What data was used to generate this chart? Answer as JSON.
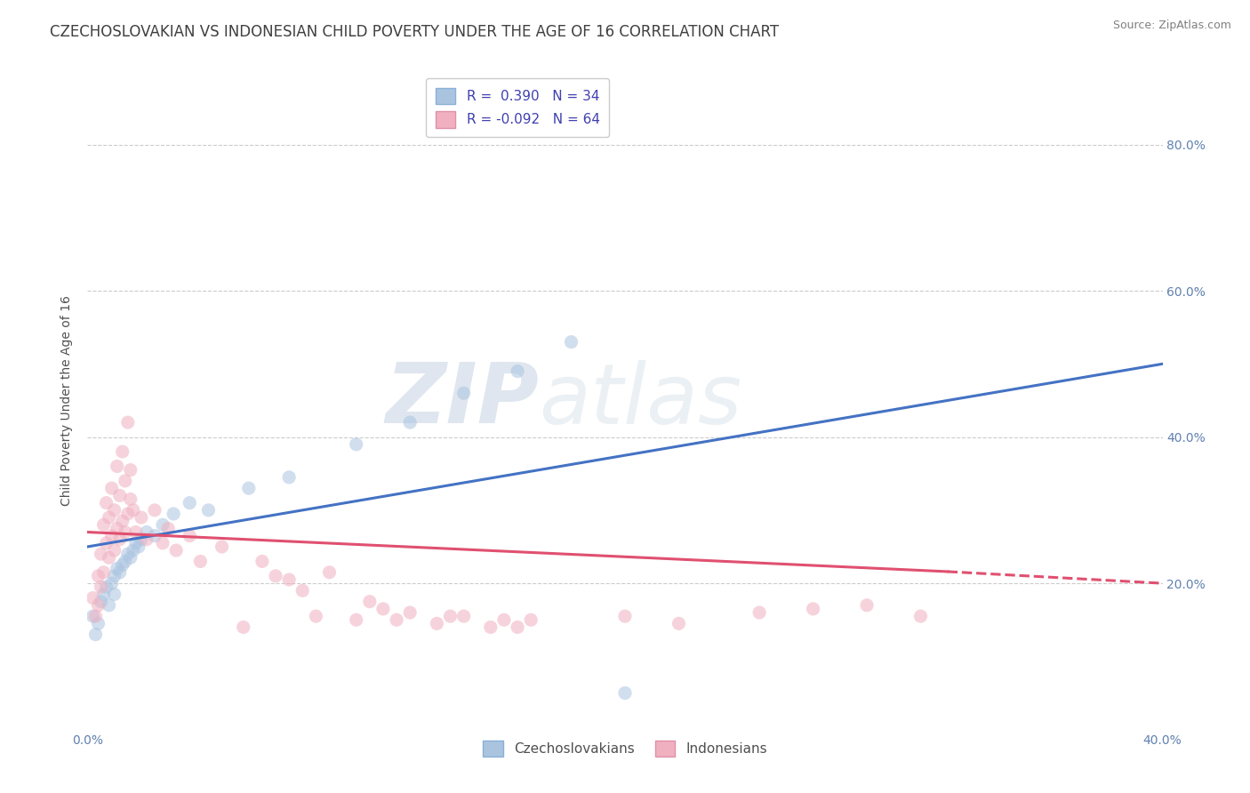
{
  "title": "CZECHOSLOVAKIAN VS INDONESIAN CHILD POVERTY UNDER THE AGE OF 16 CORRELATION CHART",
  "source": "Source: ZipAtlas.com",
  "ylabel": "Child Poverty Under the Age of 16",
  "xlim": [
    0.0,
    0.4
  ],
  "ylim": [
    0.0,
    0.9
  ],
  "xticks": [
    0.0,
    0.1,
    0.2,
    0.3,
    0.4
  ],
  "xticklabels": [
    "0.0%",
    "",
    "",
    "",
    "40.0%"
  ],
  "yticks_left": [
    0.0,
    0.2,
    0.4,
    0.6,
    0.8
  ],
  "yticklabels_left": [
    "",
    "",
    "",
    "",
    ""
  ],
  "yticks_right": [
    0.2,
    0.4,
    0.6,
    0.8
  ],
  "yticklabels_right": [
    "20.0%",
    "40.0%",
    "60.0%",
    "80.0%"
  ],
  "grid_color": "#cccccc",
  "background_color": "#ffffff",
  "watermark_zip": "ZIP",
  "watermark_atlas": "atlas",
  "blue_R": "0.390",
  "blue_N": "34",
  "pink_R": "-0.092",
  "pink_N": "64",
  "blue_scatter": [
    [
      0.002,
      0.155
    ],
    [
      0.003,
      0.13
    ],
    [
      0.004,
      0.145
    ],
    [
      0.005,
      0.175
    ],
    [
      0.006,
      0.185
    ],
    [
      0.007,
      0.195
    ],
    [
      0.008,
      0.17
    ],
    [
      0.009,
      0.2
    ],
    [
      0.01,
      0.185
    ],
    [
      0.01,
      0.21
    ],
    [
      0.011,
      0.22
    ],
    [
      0.012,
      0.215
    ],
    [
      0.013,
      0.225
    ],
    [
      0.014,
      0.23
    ],
    [
      0.015,
      0.24
    ],
    [
      0.016,
      0.235
    ],
    [
      0.017,
      0.245
    ],
    [
      0.018,
      0.255
    ],
    [
      0.019,
      0.25
    ],
    [
      0.02,
      0.26
    ],
    [
      0.022,
      0.27
    ],
    [
      0.025,
      0.265
    ],
    [
      0.028,
      0.28
    ],
    [
      0.032,
      0.295
    ],
    [
      0.038,
      0.31
    ],
    [
      0.045,
      0.3
    ],
    [
      0.06,
      0.33
    ],
    [
      0.075,
      0.345
    ],
    [
      0.1,
      0.39
    ],
    [
      0.12,
      0.42
    ],
    [
      0.14,
      0.46
    ],
    [
      0.16,
      0.49
    ],
    [
      0.18,
      0.53
    ],
    [
      0.2,
      0.05
    ]
  ],
  "pink_scatter": [
    [
      0.002,
      0.18
    ],
    [
      0.003,
      0.155
    ],
    [
      0.004,
      0.17
    ],
    [
      0.004,
      0.21
    ],
    [
      0.005,
      0.195
    ],
    [
      0.005,
      0.24
    ],
    [
      0.006,
      0.215
    ],
    [
      0.006,
      0.28
    ],
    [
      0.007,
      0.255
    ],
    [
      0.007,
      0.31
    ],
    [
      0.008,
      0.235
    ],
    [
      0.008,
      0.29
    ],
    [
      0.009,
      0.265
    ],
    [
      0.009,
      0.33
    ],
    [
      0.01,
      0.245
    ],
    [
      0.01,
      0.3
    ],
    [
      0.011,
      0.275
    ],
    [
      0.011,
      0.36
    ],
    [
      0.012,
      0.26
    ],
    [
      0.012,
      0.32
    ],
    [
      0.013,
      0.285
    ],
    [
      0.013,
      0.38
    ],
    [
      0.014,
      0.27
    ],
    [
      0.014,
      0.34
    ],
    [
      0.015,
      0.295
    ],
    [
      0.015,
      0.42
    ],
    [
      0.016,
      0.315
    ],
    [
      0.016,
      0.355
    ],
    [
      0.017,
      0.3
    ],
    [
      0.018,
      0.27
    ],
    [
      0.02,
      0.29
    ],
    [
      0.022,
      0.26
    ],
    [
      0.025,
      0.3
    ],
    [
      0.028,
      0.255
    ],
    [
      0.03,
      0.275
    ],
    [
      0.033,
      0.245
    ],
    [
      0.038,
      0.265
    ],
    [
      0.042,
      0.23
    ],
    [
      0.05,
      0.25
    ],
    [
      0.058,
      0.14
    ],
    [
      0.065,
      0.23
    ],
    [
      0.07,
      0.21
    ],
    [
      0.075,
      0.205
    ],
    [
      0.08,
      0.19
    ],
    [
      0.085,
      0.155
    ],
    [
      0.09,
      0.215
    ],
    [
      0.1,
      0.15
    ],
    [
      0.105,
      0.175
    ],
    [
      0.11,
      0.165
    ],
    [
      0.115,
      0.15
    ],
    [
      0.12,
      0.16
    ],
    [
      0.13,
      0.145
    ],
    [
      0.135,
      0.155
    ],
    [
      0.14,
      0.155
    ],
    [
      0.15,
      0.14
    ],
    [
      0.155,
      0.15
    ],
    [
      0.16,
      0.14
    ],
    [
      0.165,
      0.15
    ],
    [
      0.2,
      0.155
    ],
    [
      0.22,
      0.145
    ],
    [
      0.25,
      0.16
    ],
    [
      0.27,
      0.165
    ],
    [
      0.29,
      0.17
    ],
    [
      0.31,
      0.155
    ]
  ],
  "blue_color": "#aac4e0",
  "pink_color": "#f0b0c0",
  "blue_line_color": "#4472c4",
  "pink_line_color": "#e05070",
  "title_color": "#404040",
  "axis_label_color": "#505050",
  "tick_color": "#6080b0",
  "source_color": "#808080",
  "legend_label_color": "#4040b0",
  "title_fontsize": 12,
  "axis_label_fontsize": 10,
  "tick_fontsize": 10,
  "source_fontsize": 9,
  "legend_fontsize": 11,
  "scatter_size": 120,
  "scatter_alpha": 0.55,
  "line_width": 2.2
}
